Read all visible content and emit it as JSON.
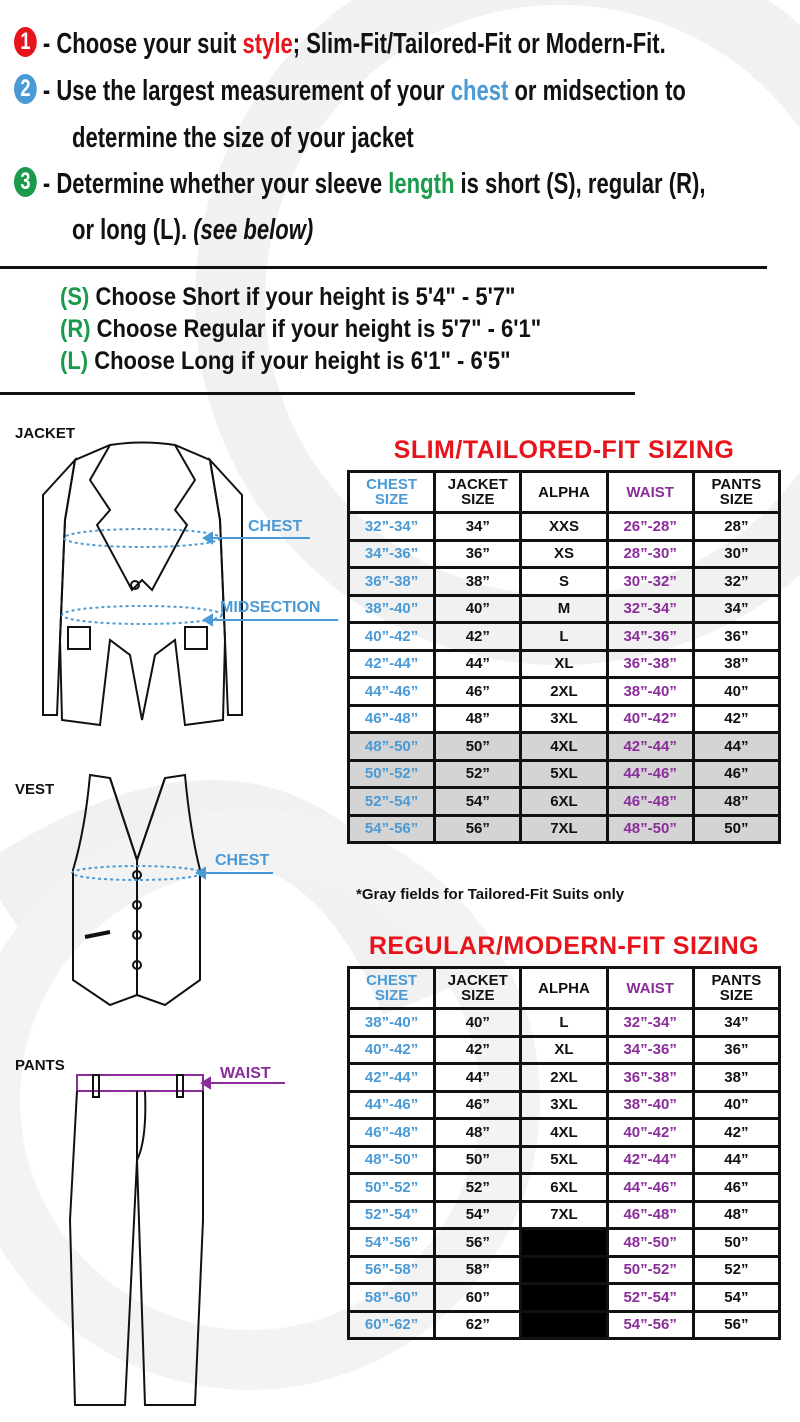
{
  "instructions": {
    "step1": {
      "num": "1",
      "pre": "- Choose your suit ",
      "hl": "style",
      "post": "; Slim-Fit/Tailored-Fit or Modern-Fit.",
      "color": "#e8141c"
    },
    "step2": {
      "num": "2",
      "pre": "- Use the largest measurement of your ",
      "hl": "chest",
      "post": " or midsection to",
      "line2": "determine the size of your jacket",
      "color": "#4a9ad6"
    },
    "step3": {
      "num": "3",
      "pre": "- Determine whether your sleeve ",
      "hl": "length",
      "post": " is short (S), regular (R),",
      "line2a": "or long (L). ",
      "line2b": "(see below)",
      "color": "#1a9a4a"
    }
  },
  "lengths": [
    {
      "code": "(S)",
      "text": " Choose Short if your height is 5'4\" - 5'7\""
    },
    {
      "code": "(R)",
      "text": " Choose Regular if your height is  5'7\" - 6'1\""
    },
    {
      "code": "(L)",
      "text": " Choose Long if your height is  6'1\" - 6'5\""
    }
  ],
  "garments": {
    "jacket": "JACKET",
    "vest": "VEST",
    "pants": "PANTS",
    "chest": "CHEST",
    "midsection": "MIDSECTION",
    "vest_chest": "CHEST",
    "waist": "WAIST"
  },
  "colors": {
    "chest": "#4a9ad6",
    "waist": "#8a2d9a",
    "title": "#e8141c",
    "gray": "#d4d4d4"
  },
  "headers": [
    "CHEST\nSIZE",
    "JACKET\nSIZE",
    "ALPHA",
    "WAIST",
    "PANTS\nSIZE"
  ],
  "slim": {
    "title": "SLIM/TAILORED-FIT SIZING",
    "note": "*Gray fields for Tailored-Fit Suits only",
    "rows": [
      [
        "32”-34”",
        "34”",
        "XXS",
        "26”-28”",
        "28”"
      ],
      [
        "34”-36”",
        "36”",
        "XS",
        "28”-30”",
        "30”"
      ],
      [
        "36”-38”",
        "38”",
        "S",
        "30”-32”",
        "32”"
      ],
      [
        "38”-40”",
        "40”",
        "M",
        "32”-34”",
        "34”"
      ],
      [
        "40”-42”",
        "42”",
        "L",
        "34”-36”",
        "36”"
      ],
      [
        "42”-44”",
        "44”",
        "XL",
        "36”-38”",
        "38”"
      ],
      [
        "44”-46”",
        "46”",
        "2XL",
        "38”-40”",
        "40”"
      ],
      [
        "46”-48”",
        "48”",
        "3XL",
        "40”-42”",
        "42”"
      ],
      [
        "48”-50”",
        "50”",
        "4XL",
        "42”-44”",
        "44”"
      ],
      [
        "50”-52”",
        "52”",
        "5XL",
        "44”-46”",
        "46”"
      ],
      [
        "52”-54”",
        "54”",
        "6XL",
        "46”-48”",
        "48”"
      ],
      [
        "54”-56”",
        "56”",
        "7XL",
        "48”-50”",
        "50”"
      ]
    ],
    "gray_rows": [
      8,
      9,
      10,
      11
    ]
  },
  "regular": {
    "title": "REGULAR/MODERN-FIT SIZING",
    "rows": [
      [
        "38”-40”",
        "40”",
        "L",
        "32”-34”",
        "34”"
      ],
      [
        "40”-42”",
        "42”",
        "XL",
        "34”-36”",
        "36”"
      ],
      [
        "42”-44”",
        "44”",
        "2XL",
        "36”-38”",
        "38”"
      ],
      [
        "44”-46”",
        "46”",
        "3XL",
        "38”-40”",
        "40”"
      ],
      [
        "46”-48”",
        "48”",
        "4XL",
        "40”-42”",
        "42”"
      ],
      [
        "48”-50”",
        "50”",
        "5XL",
        "42”-44”",
        "44”"
      ],
      [
        "50”-52”",
        "52”",
        "6XL",
        "44”-46”",
        "46”"
      ],
      [
        "52”-54”",
        "54”",
        "7XL",
        "46”-48”",
        "48”"
      ],
      [
        "54”-56”",
        "56”",
        "",
        "48”-50”",
        "50”"
      ],
      [
        "56”-58”",
        "58”",
        "",
        "50”-52”",
        "52”"
      ],
      [
        "58”-60”",
        "60”",
        "",
        "52”-54”",
        "54”"
      ],
      [
        "60”-62”",
        "62”",
        "",
        "54”-56”",
        "56”"
      ]
    ],
    "black_alpha_rows": [
      8,
      9,
      10,
      11
    ]
  }
}
